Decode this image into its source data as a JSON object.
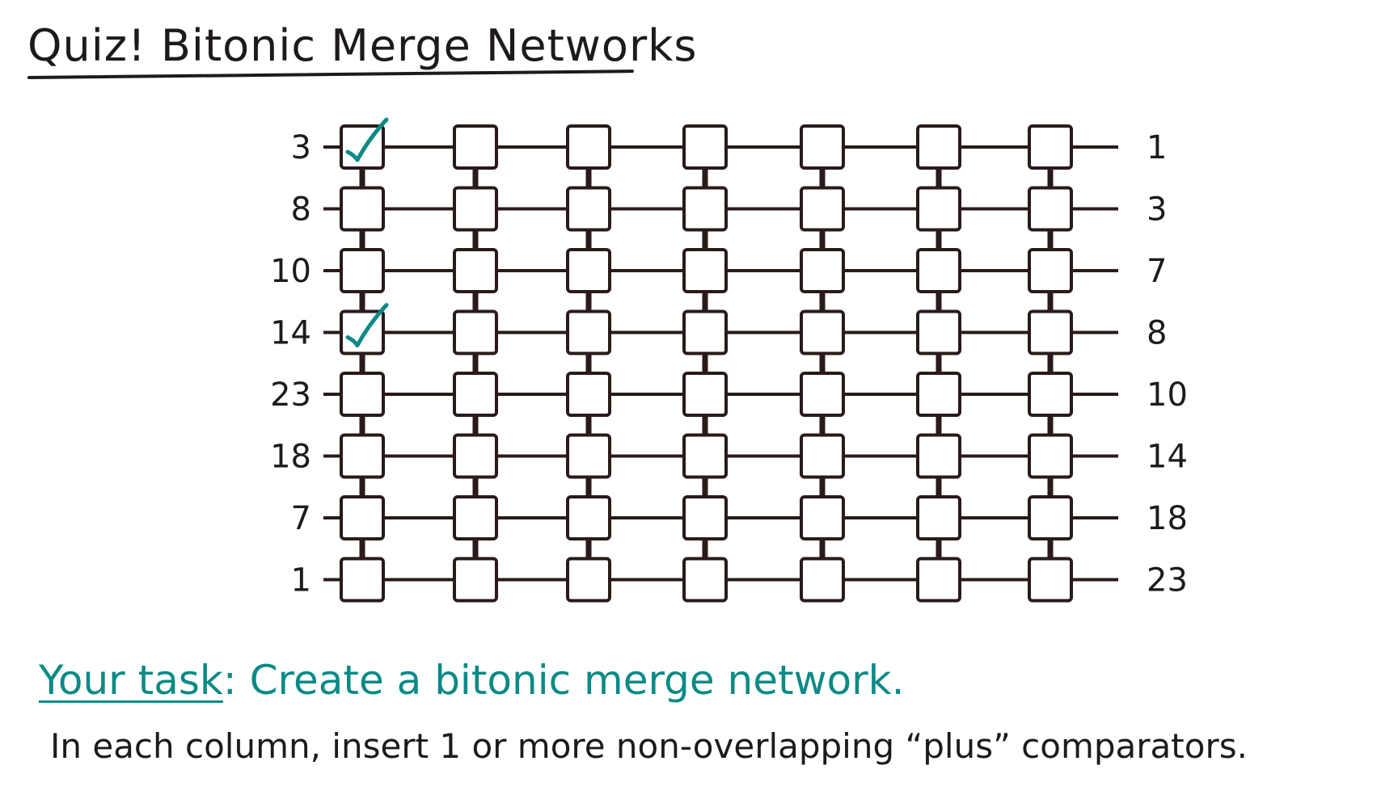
{
  "title": "Quiz! Bitonic Merge Networks",
  "network": {
    "input_values": [
      "3",
      "8",
      "10",
      "14",
      "23",
      "18",
      "7",
      "1"
    ],
    "output_values": [
      "1",
      "3",
      "7",
      "8",
      "10",
      "14",
      "18",
      "23"
    ],
    "column_count": 7,
    "checked_cells": [
      {
        "row": 0,
        "column": 0
      },
      {
        "row": 3,
        "column": 0
      }
    ]
  },
  "task": {
    "prefix": "Your task",
    "text": ": Create a bitonic merge network."
  },
  "instruction": "In each column, insert 1 or more non-overlapping “plus” comparators.",
  "colors": {
    "ink": "#1f1a1a",
    "wire": "#2a1a1a",
    "teal": "#0b8a86"
  }
}
